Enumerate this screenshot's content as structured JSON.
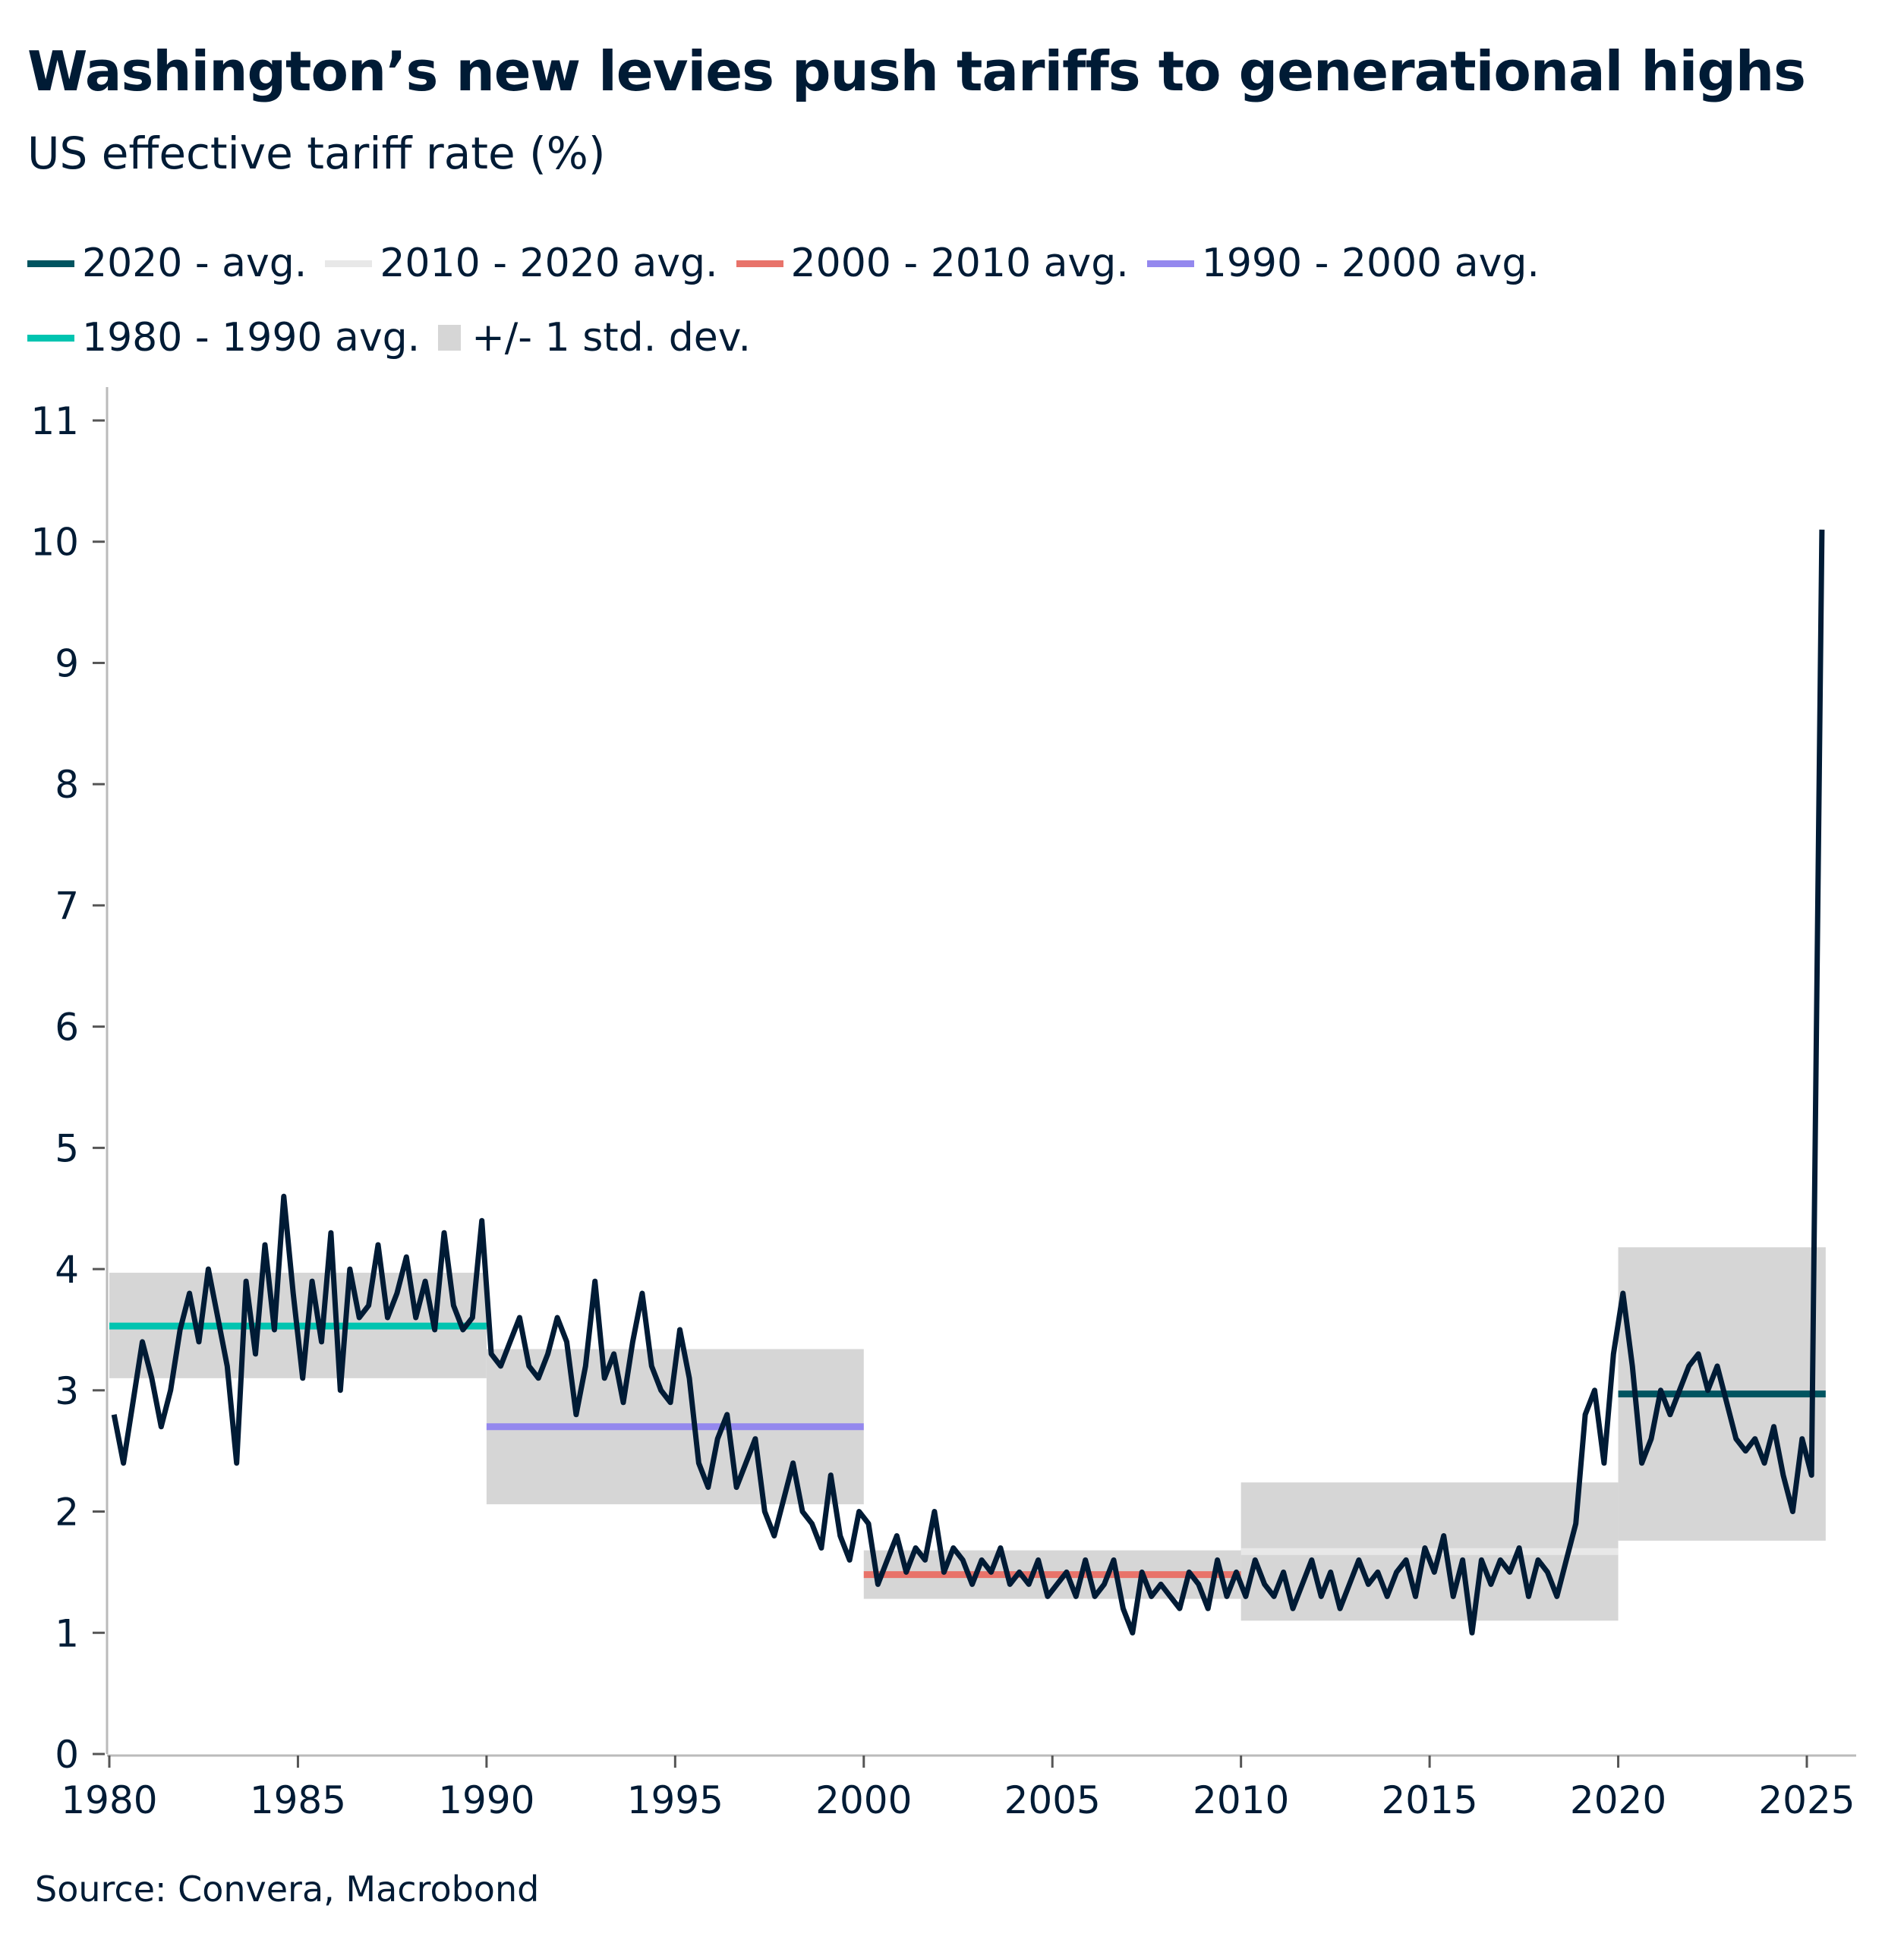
{
  "title": "Washington’s new levies push tariffs to generational highs",
  "subtitle": "US effective tariff rate (%)",
  "source": "Source: Convera, Macrobond",
  "legend": [
    {
      "label": "2020 - avg.",
      "color": "#005460",
      "kind": "line"
    },
    {
      "label": "2010 - 2020 avg.",
      "color": "#e8e8e8",
      "kind": "line"
    },
    {
      "label": "2000 - 2010 avg.",
      "color": "#e8736a",
      "kind": "line"
    },
    {
      "label": "1990 - 2000 avg.",
      "color": "#9488ee",
      "kind": "line"
    },
    {
      "label": "1980 - 1990 avg.",
      "color": "#00c4b0",
      "kind": "line"
    },
    {
      "label": "+/- 1 std. dev.",
      "color": "#d6d6d6",
      "kind": "box"
    }
  ],
  "chart_data": {
    "type": "line",
    "title": "Washington’s new levies push tariffs to generational highs",
    "ylabel": "US effective tariff rate (%)",
    "xlim": [
      1980,
      2025.6
    ],
    "ylim": [
      0,
      11
    ],
    "x_ticks": [
      "1980",
      "1985",
      "1990",
      "1995",
      "2000",
      "2005",
      "2010",
      "2015",
      "2020",
      "2025"
    ],
    "y_ticks": [
      "0",
      "1",
      "2",
      "3",
      "4",
      "5",
      "6",
      "7",
      "8",
      "9",
      "10",
      "11"
    ],
    "grid": false,
    "legend_position": "top-left",
    "line_color": "#001b35",
    "series_quarterly_by_year": {
      "1980": [
        2.8,
        2.4,
        2.9,
        3.4
      ],
      "1981": [
        3.1,
        2.7,
        3.0,
        3.5
      ],
      "1982": [
        3.8,
        3.4,
        4.0,
        3.6
      ],
      "1983": [
        3.2,
        2.4,
        3.9,
        3.3
      ],
      "1984": [
        4.2,
        3.5,
        4.6,
        3.8
      ],
      "1985": [
        3.1,
        3.9,
        3.4,
        4.3
      ],
      "1986": [
        3.0,
        4.0,
        3.6,
        3.7
      ],
      "1987": [
        4.2,
        3.6,
        3.8,
        4.1
      ],
      "1988": [
        3.6,
        3.9,
        3.5,
        4.3
      ],
      "1989": [
        3.7,
        3.5,
        3.6,
        4.4
      ],
      "1990": [
        3.3,
        3.2,
        3.4,
        3.6
      ],
      "1991": [
        3.2,
        3.1,
        3.3,
        3.6
      ],
      "1992": [
        3.4,
        2.8,
        3.2,
        3.9
      ],
      "1993": [
        3.1,
        3.3,
        2.9,
        3.4
      ],
      "1994": [
        3.8,
        3.2,
        3.0,
        2.9
      ],
      "1995": [
        3.5,
        3.1,
        2.4,
        2.2
      ],
      "1996": [
        2.6,
        2.8,
        2.2,
        2.4
      ],
      "1997": [
        2.6,
        2.0,
        1.8,
        2.1
      ],
      "1998": [
        2.4,
        2.0,
        1.9,
        1.7
      ],
      "1999": [
        2.3,
        1.8,
        1.6,
        2.0
      ],
      "2000": [
        1.9,
        1.4,
        1.6,
        1.8
      ],
      "2001": [
        1.5,
        1.7,
        1.6,
        2.0
      ],
      "2002": [
        1.5,
        1.7,
        1.6,
        1.4
      ],
      "2003": [
        1.6,
        1.5,
        1.7,
        1.4
      ],
      "2004": [
        1.5,
        1.4,
        1.6,
        1.3
      ],
      "2005": [
        1.4,
        1.5,
        1.3,
        1.6
      ],
      "2006": [
        1.3,
        1.4,
        1.6,
        1.2
      ],
      "2007": [
        1.0,
        1.5,
        1.3,
        1.4
      ],
      "2008": [
        1.3,
        1.2,
        1.5,
        1.4
      ],
      "2009": [
        1.2,
        1.6,
        1.3,
        1.5
      ],
      "2010": [
        1.3,
        1.6,
        1.4,
        1.3
      ],
      "2011": [
        1.5,
        1.2,
        1.4,
        1.6
      ],
      "2012": [
        1.3,
        1.5,
        1.2,
        1.4
      ],
      "2013": [
        1.6,
        1.4,
        1.5,
        1.3
      ],
      "2014": [
        1.5,
        1.6,
        1.3,
        1.7
      ],
      "2015": [
        1.5,
        1.8,
        1.3,
        1.6
      ],
      "2016": [
        1.0,
        1.6,
        1.4,
        1.6
      ],
      "2017": [
        1.5,
        1.7,
        1.3,
        1.6
      ],
      "2018": [
        1.5,
        1.3,
        1.6,
        1.9
      ],
      "2019": [
        2.8,
        3.0,
        2.4,
        3.3
      ],
      "2020": [
        3.8,
        3.2,
        2.4,
        2.6
      ],
      "2021": [
        3.0,
        2.8,
        3.0,
        3.2
      ],
      "2022": [
        3.3,
        3.0,
        3.2,
        2.9
      ],
      "2023": [
        2.6,
        2.5,
        2.6,
        2.4
      ],
      "2024": [
        2.7,
        2.3,
        2.0,
        2.6
      ],
      "2025": [
        2.3,
        10.1
      ]
    },
    "period_bands": [
      {
        "label": "1980 - 1990 avg.",
        "from": 1980,
        "to": 1990,
        "avg": 3.53,
        "low": 3.1,
        "high": 3.97,
        "color": "#00c4b0"
      },
      {
        "label": "1990 - 2000 avg.",
        "from": 1990,
        "to": 2000,
        "avg": 2.7,
        "low": 2.06,
        "high": 3.34,
        "color": "#9488ee"
      },
      {
        "label": "2000 - 2010 avg.",
        "from": 2000,
        "to": 2010,
        "avg": 1.48,
        "low": 1.28,
        "high": 1.68,
        "color": "#e8736a"
      },
      {
        "label": "2010 - 2020 avg.",
        "from": 2010,
        "to": 2020,
        "avg": 1.67,
        "low": 1.1,
        "high": 2.24,
        "color": "#e8e8e8"
      },
      {
        "label": "2020 - avg.",
        "from": 2020,
        "to": 2025.5,
        "avg": 2.97,
        "low": 1.76,
        "high": 4.18,
        "color": "#005460"
      }
    ],
    "band_color": "#d6d6d6"
  }
}
